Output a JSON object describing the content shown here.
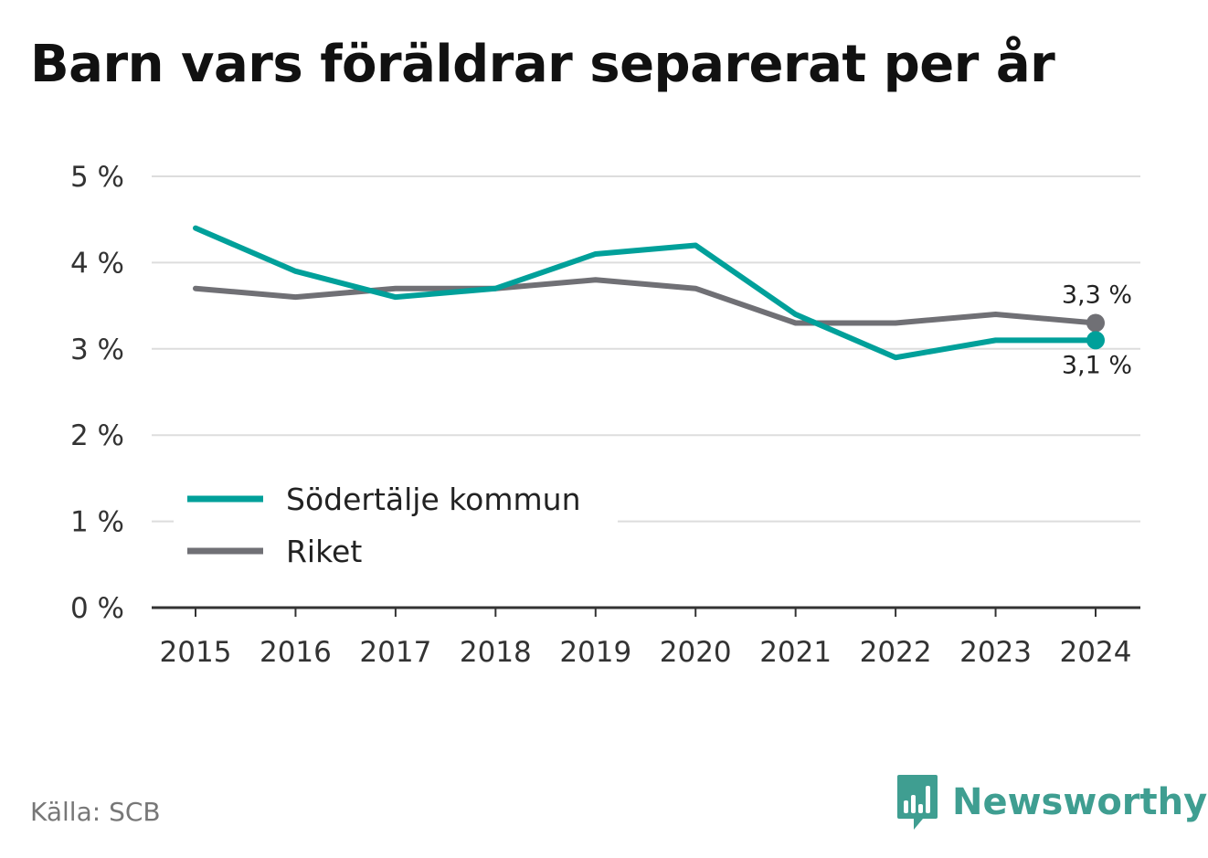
{
  "title": "Barn vars föräldrar separerat per år",
  "source": "Källa: SCB",
  "brand": {
    "name": "Newsworthy",
    "icon": "bar-chart-speech-bubble-icon",
    "color": "#3f9e91"
  },
  "chart_data": {
    "type": "line",
    "title": "Barn vars föräldrar separerat per år",
    "xlabel": "",
    "ylabel": "",
    "x": [
      "2015",
      "2016",
      "2017",
      "2018",
      "2019",
      "2020",
      "2021",
      "2022",
      "2023",
      "2024"
    ],
    "ylim": [
      0,
      5
    ],
    "yticks": [
      {
        "value": 0,
        "label": "0 %"
      },
      {
        "value": 1,
        "label": "1 %"
      },
      {
        "value": 2,
        "label": "2 %"
      },
      {
        "value": 3,
        "label": "3 %"
      },
      {
        "value": 4,
        "label": "4 %"
      },
      {
        "value": 5,
        "label": "5 %"
      }
    ],
    "grid": true,
    "legend_position": "bottom-left",
    "series": [
      {
        "name": "Södertälje kommun",
        "color": "#00a09a",
        "values": [
          4.4,
          3.9,
          3.6,
          3.7,
          4.1,
          4.2,
          3.4,
          2.9,
          3.1,
          3.1
        ],
        "end_label": "3,1 %"
      },
      {
        "name": "Riket",
        "color": "#707075",
        "values": [
          3.7,
          3.6,
          3.7,
          3.7,
          3.8,
          3.7,
          3.3,
          3.3,
          3.4,
          3.3
        ],
        "end_label": "3,3 %"
      }
    ]
  }
}
